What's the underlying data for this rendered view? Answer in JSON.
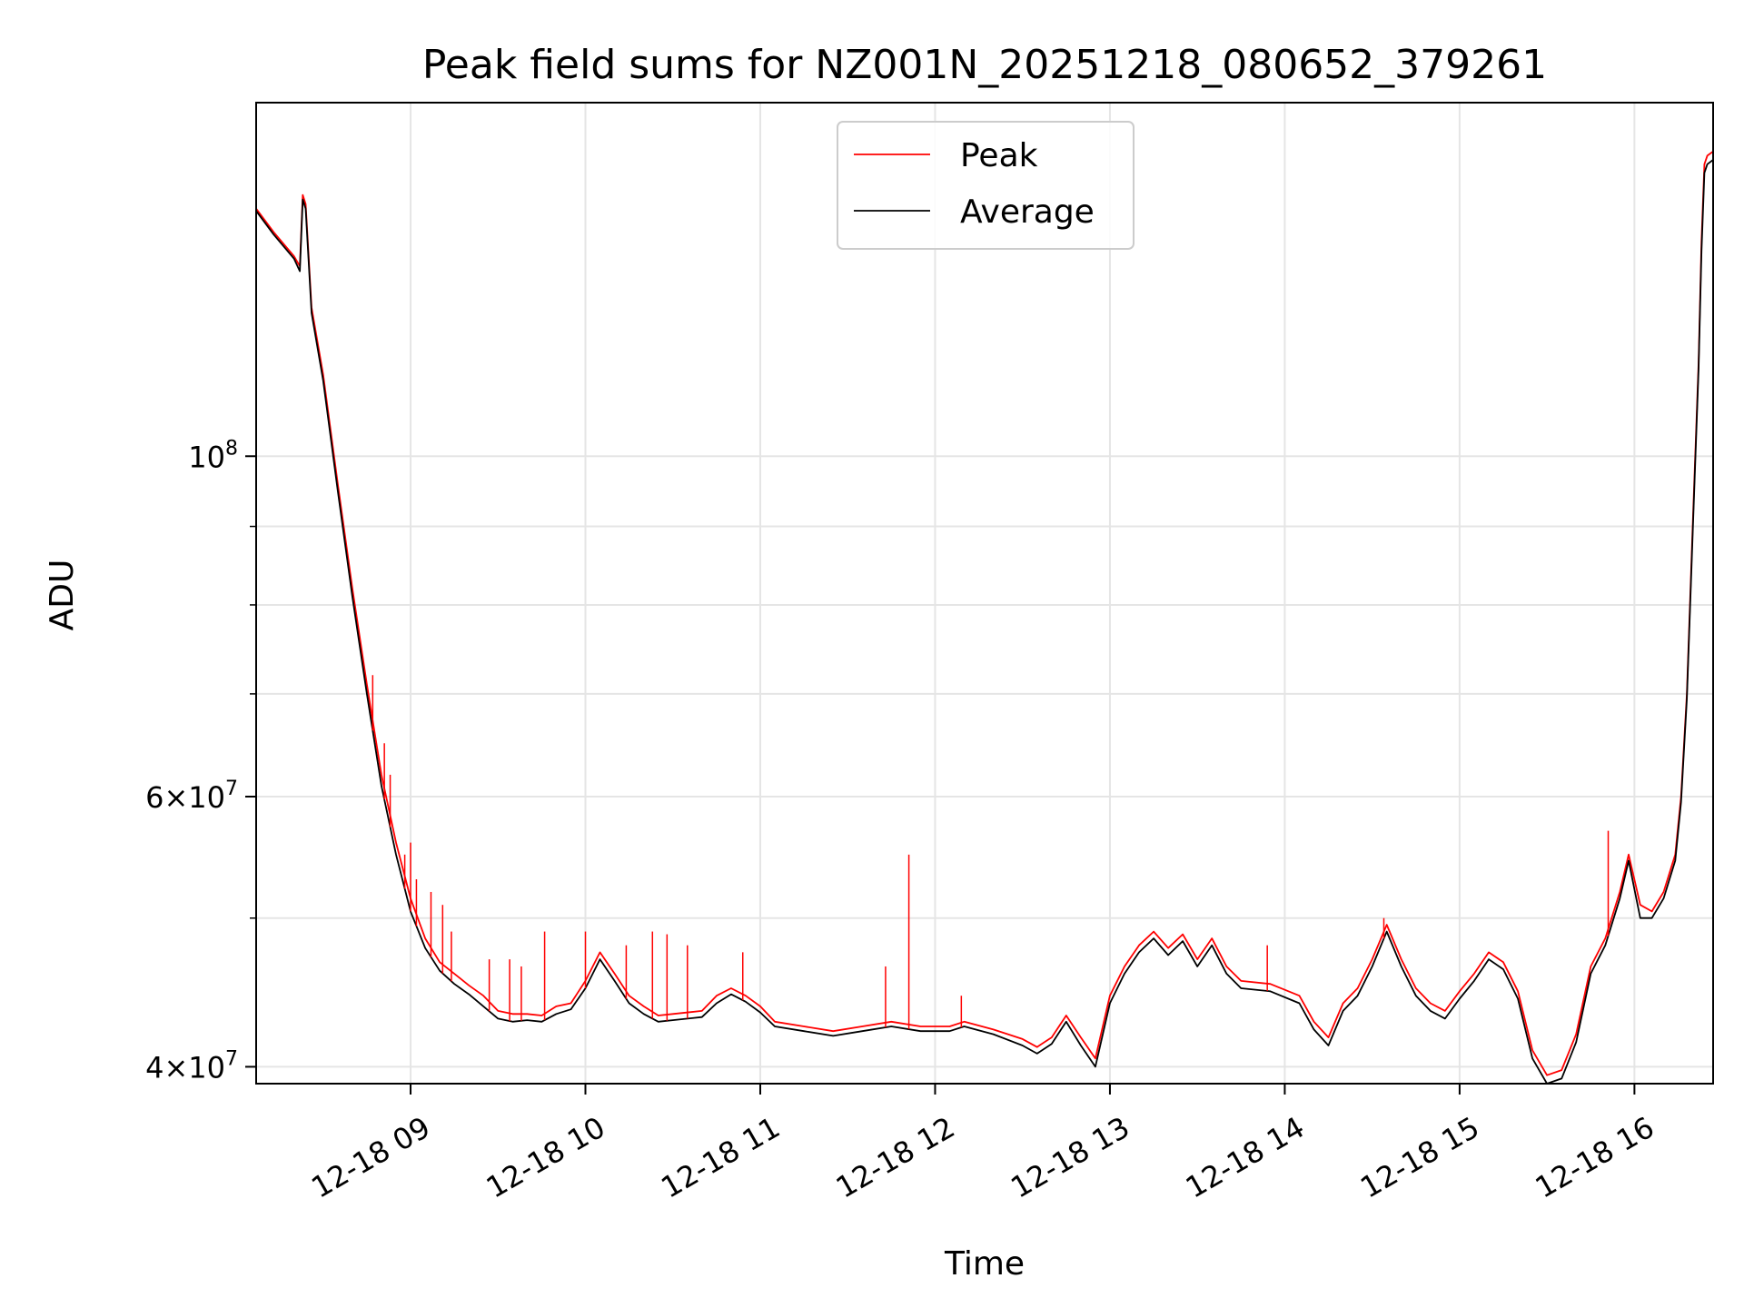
{
  "chart_data": {
    "type": "line",
    "title": "Peak field sums for NZ001N_20251218_080652_379261",
    "xlabel": "Time",
    "ylabel": "ADU",
    "yscale": "log",
    "grid": true,
    "legend": "upper center",
    "xlim": [
      "2025-12-18T08:07:00",
      "2025-12-18T16:27:00"
    ],
    "ylim": [
      39000000,
      170000000
    ],
    "x_ticks": [
      {
        "value": "2025-12-18T09:00:00",
        "label": "12-18 09"
      },
      {
        "value": "2025-12-18T10:00:00",
        "label": "12-18 10"
      },
      {
        "value": "2025-12-18T11:00:00",
        "label": "12-18 11"
      },
      {
        "value": "2025-12-18T12:00:00",
        "label": "12-18 12"
      },
      {
        "value": "2025-12-18T13:00:00",
        "label": "12-18 13"
      },
      {
        "value": "2025-12-18T14:00:00",
        "label": "12-18 14"
      },
      {
        "value": "2025-12-18T15:00:00",
        "label": "12-18 15"
      },
      {
        "value": "2025-12-18T16:00:00",
        "label": "12-18 16"
      }
    ],
    "y_ticks_major": [
      {
        "value": 100000000,
        "base": "10",
        "exp": "8",
        "coef": ""
      },
      {
        "value": 60000000,
        "base": "10",
        "exp": "7",
        "coef": "6"
      },
      {
        "value": 40000000,
        "base": "10",
        "exp": "7",
        "coef": "4"
      }
    ],
    "y_ticks_minor": [
      50000000,
      70000000,
      80000000,
      90000000
    ],
    "series": [
      {
        "name": "Peak",
        "color": "#ff0000",
        "points": [
          [
            "2025-12-18T08:07:00",
            145000000
          ],
          [
            "2025-12-18T08:13:00",
            140000000
          ],
          [
            "2025-12-18T08:20:00",
            135000000
          ],
          [
            "2025-12-18T08:22:00",
            133000000
          ],
          [
            "2025-12-18T08:23:00",
            148000000
          ],
          [
            "2025-12-18T08:24:00",
            146000000
          ],
          [
            "2025-12-18T08:26:00",
            125000000
          ],
          [
            "2025-12-18T08:30:00",
            113000000
          ],
          [
            "2025-12-18T08:35:00",
            96000000
          ],
          [
            "2025-12-18T08:40:00",
            82000000
          ],
          [
            "2025-12-18T08:45:00",
            71000000
          ],
          [
            "2025-12-18T08:50:00",
            62000000
          ],
          [
            "2025-12-18T08:55:00",
            56000000
          ],
          [
            "2025-12-18T09:00:00",
            51500000
          ],
          [
            "2025-12-18T09:05:00",
            48500000
          ],
          [
            "2025-12-18T09:10:00",
            46800000
          ],
          [
            "2025-12-18T09:15:00",
            46000000
          ],
          [
            "2025-12-18T09:20:00",
            45200000
          ],
          [
            "2025-12-18T09:25:00",
            44500000
          ],
          [
            "2025-12-18T09:30:00",
            43500000
          ],
          [
            "2025-12-18T09:35:00",
            43300000
          ],
          [
            "2025-12-18T09:40:00",
            43300000
          ],
          [
            "2025-12-18T09:45:00",
            43200000
          ],
          [
            "2025-12-18T09:50:00",
            43800000
          ],
          [
            "2025-12-18T09:55:00",
            44000000
          ],
          [
            "2025-12-18T10:00:00",
            45500000
          ],
          [
            "2025-12-18T10:05:00",
            47500000
          ],
          [
            "2025-12-18T10:10:00",
            46000000
          ],
          [
            "2025-12-18T10:15:00",
            44500000
          ],
          [
            "2025-12-18T10:20:00",
            43800000
          ],
          [
            "2025-12-18T10:25:00",
            43200000
          ],
          [
            "2025-12-18T10:30:00",
            43300000
          ],
          [
            "2025-12-18T10:40:00",
            43500000
          ],
          [
            "2025-12-18T10:45:00",
            44500000
          ],
          [
            "2025-12-18T10:50:00",
            45000000
          ],
          [
            "2025-12-18T10:55:00",
            44500000
          ],
          [
            "2025-12-18T11:00:00",
            43800000
          ],
          [
            "2025-12-18T11:05:00",
            42800000
          ],
          [
            "2025-12-18T11:15:00",
            42500000
          ],
          [
            "2025-12-18T11:25:00",
            42200000
          ],
          [
            "2025-12-18T11:35:00",
            42500000
          ],
          [
            "2025-12-18T11:45:00",
            42800000
          ],
          [
            "2025-12-18T11:55:00",
            42500000
          ],
          [
            "2025-12-18T12:05:00",
            42500000
          ],
          [
            "2025-12-18T12:10:00",
            42800000
          ],
          [
            "2025-12-18T12:20:00",
            42300000
          ],
          [
            "2025-12-18T12:30:00",
            41700000
          ],
          [
            "2025-12-18T12:35:00",
            41200000
          ],
          [
            "2025-12-18T12:40:00",
            41800000
          ],
          [
            "2025-12-18T12:45:00",
            43200000
          ],
          [
            "2025-12-18T12:50:00",
            41800000
          ],
          [
            "2025-12-18T12:55:00",
            40500000
          ],
          [
            "2025-12-18T13:00:00",
            44500000
          ],
          [
            "2025-12-18T13:05:00",
            46500000
          ],
          [
            "2025-12-18T13:10:00",
            48000000
          ],
          [
            "2025-12-18T13:15:00",
            49000000
          ],
          [
            "2025-12-18T13:20:00",
            47800000
          ],
          [
            "2025-12-18T13:25:00",
            48800000
          ],
          [
            "2025-12-18T13:30:00",
            47000000
          ],
          [
            "2025-12-18T13:35:00",
            48500000
          ],
          [
            "2025-12-18T13:40:00",
            46500000
          ],
          [
            "2025-12-18T13:45:00",
            45500000
          ],
          [
            "2025-12-18T13:55:00",
            45300000
          ],
          [
            "2025-12-18T14:05:00",
            44500000
          ],
          [
            "2025-12-18T14:10:00",
            42800000
          ],
          [
            "2025-12-18T14:15:00",
            41800000
          ],
          [
            "2025-12-18T14:20:00",
            44000000
          ],
          [
            "2025-12-18T14:25:00",
            45000000
          ],
          [
            "2025-12-18T14:30:00",
            47000000
          ],
          [
            "2025-12-18T14:35:00",
            49500000
          ],
          [
            "2025-12-18T14:40:00",
            47000000
          ],
          [
            "2025-12-18T14:45:00",
            45000000
          ],
          [
            "2025-12-18T14:50:00",
            44000000
          ],
          [
            "2025-12-18T14:55:00",
            43500000
          ],
          [
            "2025-12-18T15:00:00",
            44800000
          ],
          [
            "2025-12-18T15:05:00",
            46000000
          ],
          [
            "2025-12-18T15:10:00",
            47500000
          ],
          [
            "2025-12-18T15:15:00",
            46800000
          ],
          [
            "2025-12-18T15:20:00",
            44800000
          ],
          [
            "2025-12-18T15:25:00",
            41000000
          ],
          [
            "2025-12-18T15:30:00",
            39500000
          ],
          [
            "2025-12-18T15:35:00",
            39800000
          ],
          [
            "2025-12-18T15:40:00",
            42000000
          ],
          [
            "2025-12-18T15:45:00",
            46500000
          ],
          [
            "2025-12-18T15:50:00",
            48500000
          ],
          [
            "2025-12-18T15:55:00",
            52000000
          ],
          [
            "2025-12-18T15:58:00",
            55000000
          ],
          [
            "2025-12-18T16:02:00",
            51000000
          ],
          [
            "2025-12-18T16:06:00",
            50500000
          ],
          [
            "2025-12-18T16:10:00",
            52000000
          ],
          [
            "2025-12-18T16:14:00",
            55000000
          ],
          [
            "2025-12-18T16:16:00",
            60000000
          ],
          [
            "2025-12-18T16:18:00",
            70000000
          ],
          [
            "2025-12-18T16:20:00",
            90000000
          ],
          [
            "2025-12-18T16:22:00",
            115000000
          ],
          [
            "2025-12-18T16:23:00",
            138000000
          ],
          [
            "2025-12-18T16:24:00",
            155000000
          ],
          [
            "2025-12-18T16:25:00",
            157000000
          ],
          [
            "2025-12-18T16:27:00",
            158000000
          ]
        ]
      },
      {
        "name": "Average",
        "color": "#000000",
        "points": [
          [
            "2025-12-18T08:07:00",
            144500000
          ],
          [
            "2025-12-18T08:13:00",
            139500000
          ],
          [
            "2025-12-18T08:20:00",
            134500000
          ],
          [
            "2025-12-18T08:22:00",
            132000000
          ],
          [
            "2025-12-18T08:23:00",
            147000000
          ],
          [
            "2025-12-18T08:24:00",
            145000000
          ],
          [
            "2025-12-18T08:26:00",
            124000000
          ],
          [
            "2025-12-18T08:30:00",
            112000000
          ],
          [
            "2025-12-18T08:35:00",
            95000000
          ],
          [
            "2025-12-18T08:40:00",
            81000000
          ],
          [
            "2025-12-18T08:45:00",
            70000000
          ],
          [
            "2025-12-18T08:50:00",
            61000000
          ],
          [
            "2025-12-18T08:55:00",
            55000000
          ],
          [
            "2025-12-18T09:00:00",
            50500000
          ],
          [
            "2025-12-18T09:05:00",
            47800000
          ],
          [
            "2025-12-18T09:10:00",
            46200000
          ],
          [
            "2025-12-18T09:15:00",
            45300000
          ],
          [
            "2025-12-18T09:20:00",
            44600000
          ],
          [
            "2025-12-18T09:25:00",
            43800000
          ],
          [
            "2025-12-18T09:30:00",
            43000000
          ],
          [
            "2025-12-18T09:35:00",
            42800000
          ],
          [
            "2025-12-18T09:40:00",
            42900000
          ],
          [
            "2025-12-18T09:45:00",
            42800000
          ],
          [
            "2025-12-18T09:50:00",
            43300000
          ],
          [
            "2025-12-18T09:55:00",
            43600000
          ],
          [
            "2025-12-18T10:00:00",
            45000000
          ],
          [
            "2025-12-18T10:05:00",
            47000000
          ],
          [
            "2025-12-18T10:10:00",
            45500000
          ],
          [
            "2025-12-18T10:15:00",
            44000000
          ],
          [
            "2025-12-18T10:20:00",
            43300000
          ],
          [
            "2025-12-18T10:25:00",
            42800000
          ],
          [
            "2025-12-18T10:30:00",
            42900000
          ],
          [
            "2025-12-18T10:40:00",
            43100000
          ],
          [
            "2025-12-18T10:45:00",
            44000000
          ],
          [
            "2025-12-18T10:50:00",
            44600000
          ],
          [
            "2025-12-18T10:55:00",
            44100000
          ],
          [
            "2025-12-18T11:00:00",
            43400000
          ],
          [
            "2025-12-18T11:05:00",
            42500000
          ],
          [
            "2025-12-18T11:15:00",
            42200000
          ],
          [
            "2025-12-18T11:25:00",
            41900000
          ],
          [
            "2025-12-18T11:35:00",
            42200000
          ],
          [
            "2025-12-18T11:45:00",
            42500000
          ],
          [
            "2025-12-18T11:55:00",
            42200000
          ],
          [
            "2025-12-18T12:05:00",
            42200000
          ],
          [
            "2025-12-18T12:10:00",
            42500000
          ],
          [
            "2025-12-18T12:20:00",
            42000000
          ],
          [
            "2025-12-18T12:30:00",
            41300000
          ],
          [
            "2025-12-18T12:35:00",
            40800000
          ],
          [
            "2025-12-18T12:40:00",
            41400000
          ],
          [
            "2025-12-18T12:45:00",
            42800000
          ],
          [
            "2025-12-18T12:50:00",
            41300000
          ],
          [
            "2025-12-18T12:55:00",
            40000000
          ],
          [
            "2025-12-18T13:00:00",
            44000000
          ],
          [
            "2025-12-18T13:05:00",
            46000000
          ],
          [
            "2025-12-18T13:10:00",
            47500000
          ],
          [
            "2025-12-18T13:15:00",
            48500000
          ],
          [
            "2025-12-18T13:20:00",
            47300000
          ],
          [
            "2025-12-18T13:25:00",
            48300000
          ],
          [
            "2025-12-18T13:30:00",
            46500000
          ],
          [
            "2025-12-18T13:35:00",
            48000000
          ],
          [
            "2025-12-18T13:40:00",
            46000000
          ],
          [
            "2025-12-18T13:45:00",
            45000000
          ],
          [
            "2025-12-18T13:55:00",
            44800000
          ],
          [
            "2025-12-18T14:05:00",
            44000000
          ],
          [
            "2025-12-18T14:10:00",
            42300000
          ],
          [
            "2025-12-18T14:15:00",
            41300000
          ],
          [
            "2025-12-18T14:20:00",
            43500000
          ],
          [
            "2025-12-18T14:25:00",
            44500000
          ],
          [
            "2025-12-18T14:30:00",
            46500000
          ],
          [
            "2025-12-18T14:35:00",
            49000000
          ],
          [
            "2025-12-18T14:40:00",
            46500000
          ],
          [
            "2025-12-18T14:45:00",
            44500000
          ],
          [
            "2025-12-18T14:50:00",
            43500000
          ],
          [
            "2025-12-18T14:55:00",
            43000000
          ],
          [
            "2025-12-18T15:00:00",
            44300000
          ],
          [
            "2025-12-18T15:05:00",
            45500000
          ],
          [
            "2025-12-18T15:10:00",
            47000000
          ],
          [
            "2025-12-18T15:15:00",
            46300000
          ],
          [
            "2025-12-18T15:20:00",
            44300000
          ],
          [
            "2025-12-18T15:25:00",
            40500000
          ],
          [
            "2025-12-18T15:30:00",
            39000000
          ],
          [
            "2025-12-18T15:35:00",
            39300000
          ],
          [
            "2025-12-18T15:40:00",
            41500000
          ],
          [
            "2025-12-18T15:45:00",
            46000000
          ],
          [
            "2025-12-18T15:50:00",
            48000000
          ],
          [
            "2025-12-18T15:55:00",
            51500000
          ],
          [
            "2025-12-18T15:58:00",
            54500000
          ],
          [
            "2025-12-18T16:02:00",
            50000000
          ],
          [
            "2025-12-18T16:06:00",
            50000000
          ],
          [
            "2025-12-18T16:10:00",
            51500000
          ],
          [
            "2025-12-18T16:14:00",
            54500000
          ],
          [
            "2025-12-18T16:16:00",
            59500000
          ],
          [
            "2025-12-18T16:18:00",
            69500000
          ],
          [
            "2025-12-18T16:20:00",
            89000000
          ],
          [
            "2025-12-18T16:22:00",
            114000000
          ],
          [
            "2025-12-18T16:23:00",
            136000000
          ],
          [
            "2025-12-18T16:24:00",
            153000000
          ],
          [
            "2025-12-18T16:25:00",
            155000000
          ],
          [
            "2025-12-18T16:27:00",
            156000000
          ]
        ]
      }
    ],
    "spikes": [
      {
        "x": "2025-12-18T08:47:00",
        "y": 72000000
      },
      {
        "x": "2025-12-18T08:51:00",
        "y": 65000000
      },
      {
        "x": "2025-12-18T08:53:00",
        "y": 62000000
      },
      {
        "x": "2025-12-18T08:58:00",
        "y": 55000000
      },
      {
        "x": "2025-12-18T09:00:00",
        "y": 56000000
      },
      {
        "x": "2025-12-18T09:02:00",
        "y": 53000000
      },
      {
        "x": "2025-12-18T09:07:00",
        "y": 52000000
      },
      {
        "x": "2025-12-18T09:11:00",
        "y": 51000000
      },
      {
        "x": "2025-12-18T09:14:00",
        "y": 49000000
      },
      {
        "x": "2025-12-18T09:27:00",
        "y": 47000000
      },
      {
        "x": "2025-12-18T09:34:00",
        "y": 47000000
      },
      {
        "x": "2025-12-18T09:38:00",
        "y": 46500000
      },
      {
        "x": "2025-12-18T09:46:00",
        "y": 49000000
      },
      {
        "x": "2025-12-18T10:00:00",
        "y": 49000000
      },
      {
        "x": "2025-12-18T10:14:00",
        "y": 48000000
      },
      {
        "x": "2025-12-18T10:23:00",
        "y": 49000000
      },
      {
        "x": "2025-12-18T10:28:00",
        "y": 48800000
      },
      {
        "x": "2025-12-18T10:35:00",
        "y": 48000000
      },
      {
        "x": "2025-12-18T10:54:00",
        "y": 47500000
      },
      {
        "x": "2025-12-18T11:43:00",
        "y": 46500000
      },
      {
        "x": "2025-12-18T11:51:00",
        "y": 55000000
      },
      {
        "x": "2025-12-18T12:09:00",
        "y": 44500000
      },
      {
        "x": "2025-12-18T13:54:00",
        "y": 48000000
      },
      {
        "x": "2025-12-18T14:34:00",
        "y": 50000000
      },
      {
        "x": "2025-12-18T15:51:00",
        "y": 57000000
      }
    ]
  }
}
